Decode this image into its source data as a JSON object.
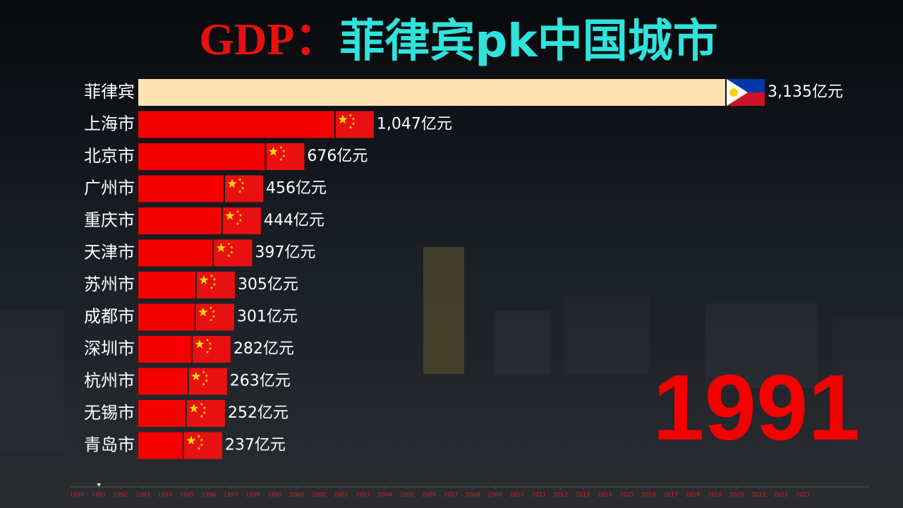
{
  "chart_data": {
    "type": "bar",
    "title": [
      "GDP：",
      "菲律宾pk中国城市"
    ],
    "title_colors": [
      "#e8100f",
      "#2fe3dc"
    ],
    "categories": [
      "菲律宾",
      "上海市",
      "北京市",
      "广州市",
      "重庆市",
      "天津市",
      "苏州市",
      "成都市",
      "深圳市",
      "杭州市",
      "无锡市",
      "青岛市"
    ],
    "values": [
      3135,
      1047,
      676,
      456,
      444,
      397,
      305,
      301,
      282,
      263,
      252,
      237
    ],
    "value_labels": [
      "3,135亿元",
      "1,047亿元",
      "676亿元",
      "456亿元",
      "444亿元",
      "397亿元",
      "305亿元",
      "301亿元",
      "282亿元",
      "263亿元",
      "252亿元",
      "237亿元"
    ],
    "colors": [
      "#fde2b4",
      "#f40000",
      "#f40000",
      "#f40000",
      "#f40000",
      "#f40000",
      "#f40000",
      "#f40000",
      "#f40000",
      "#f40000",
      "#f40000",
      "#f40000"
    ],
    "current_year": 1991,
    "timeline": [
      1990,
      1991,
      1992,
      1993,
      1994,
      1995,
      1996,
      1997,
      1998,
      1999,
      2000,
      2001,
      2002,
      2003,
      2004,
      2005,
      2006,
      2007,
      2008,
      2009,
      2010,
      2011,
      2012,
      2013,
      2014,
      2015,
      2016,
      2017,
      2018,
      2019,
      2020,
      2021,
      2022,
      2023
    ]
  }
}
